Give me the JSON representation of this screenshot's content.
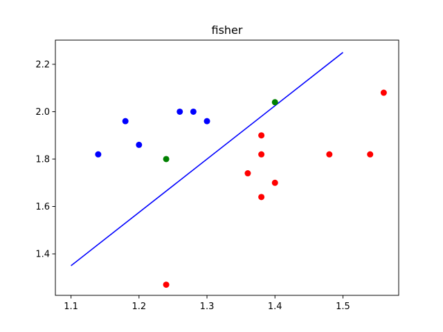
{
  "chart_data": {
    "type": "scatter",
    "title": "fisher",
    "xlabel": "",
    "ylabel": "",
    "xlim": [
      1.077,
      1.582
    ],
    "ylim": [
      1.225,
      2.302
    ],
    "xticks": [
      1.1,
      1.2,
      1.3,
      1.4,
      1.5
    ],
    "xtick_labels": [
      "1.1",
      "1.2",
      "1.3",
      "1.4",
      "1.5"
    ],
    "yticks": [
      1.4,
      1.6,
      1.8,
      2.0,
      2.2
    ],
    "ytick_labels": [
      "1.4",
      "1.6",
      "1.8",
      "2.0",
      "2.2"
    ],
    "grid": false,
    "series": [
      {
        "color": "#0000ff",
        "kind": "points",
        "points": [
          [
            1.14,
            1.82
          ],
          [
            1.18,
            1.96
          ],
          [
            1.2,
            1.86
          ],
          [
            1.26,
            2.0
          ],
          [
            1.28,
            2.0
          ],
          [
            1.3,
            1.96
          ]
        ]
      },
      {
        "color": "#ff0000",
        "kind": "points",
        "points": [
          [
            1.24,
            1.27
          ],
          [
            1.36,
            1.74
          ],
          [
            1.38,
            1.9
          ],
          [
            1.38,
            1.82
          ],
          [
            1.38,
            1.64
          ],
          [
            1.4,
            1.7
          ],
          [
            1.48,
            1.82
          ],
          [
            1.54,
            1.82
          ],
          [
            1.56,
            2.08
          ]
        ]
      },
      {
        "color": "#008000",
        "kind": "points",
        "points": [
          [
            1.24,
            1.8
          ],
          [
            1.4,
            2.04
          ]
        ]
      },
      {
        "color": "#0000ff",
        "kind": "line",
        "points": [
          [
            1.1,
            1.35
          ],
          [
            1.5,
            2.25
          ]
        ]
      }
    ]
  }
}
